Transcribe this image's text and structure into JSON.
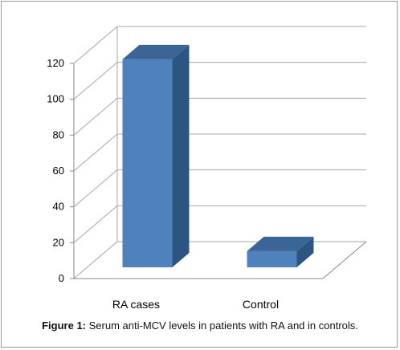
{
  "figure": {
    "caption_label": "Figure 1:",
    "caption_text": " Serum anti-MCV levels in patients with RA and in controls."
  },
  "chart_data": {
    "type": "bar",
    "categories": [
      "RA cases",
      "Control"
    ],
    "values": [
      116,
      9
    ],
    "title": "",
    "xlabel": "",
    "ylabel": "",
    "ylim": [
      0,
      120
    ],
    "yticks": [
      0,
      20,
      40,
      60,
      80,
      100,
      120
    ],
    "grid": true,
    "style": "3d-column",
    "colors": {
      "front": "#4f81bd",
      "top": "#3a6596",
      "side": "#2d5582",
      "grid": "#a6a6a6"
    }
  }
}
